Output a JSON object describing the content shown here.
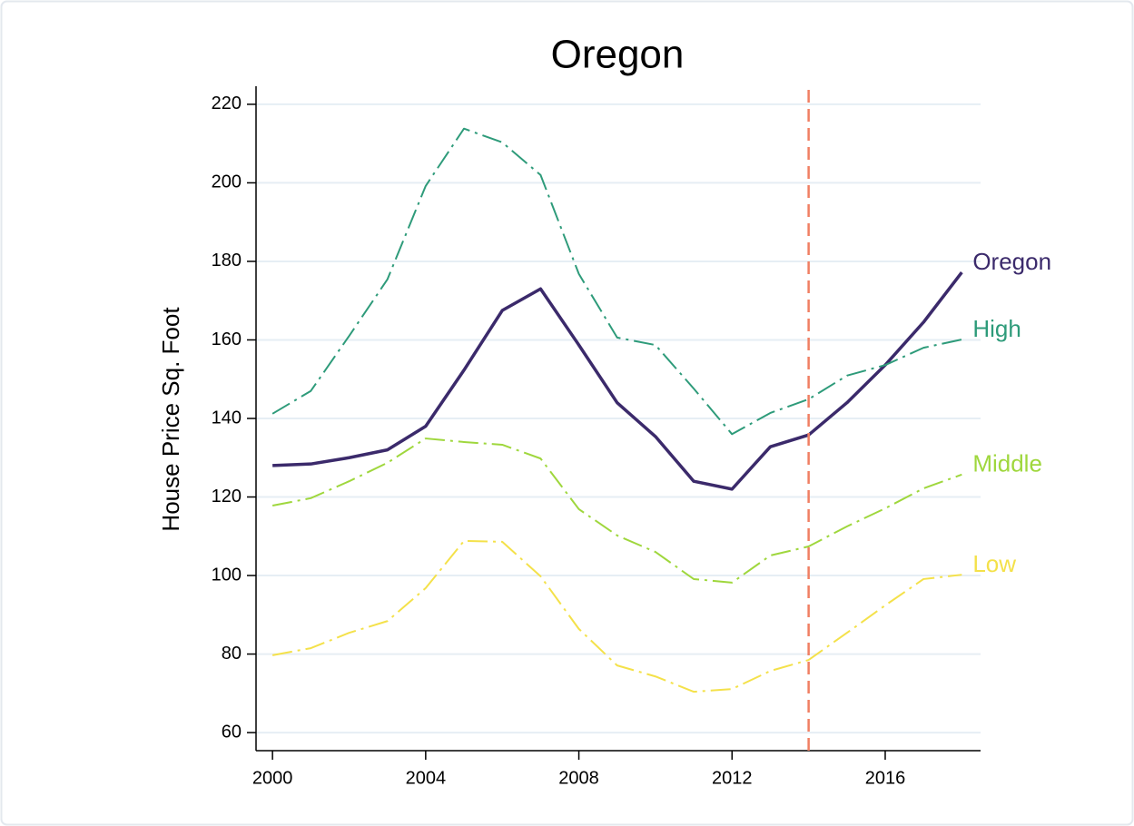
{
  "chart_data": {
    "type": "line",
    "title": "Oregon",
    "ylabel": "House Price Sq. Foot",
    "x": [
      2000,
      2001,
      2002,
      2003,
      2004,
      2005,
      2006,
      2007,
      2008,
      2009,
      2010,
      2011,
      2012,
      2013,
      2014,
      2015,
      2016,
      2017,
      2018
    ],
    "series": [
      {
        "name": "Oregon",
        "color": "#3b2a6b",
        "style": "solid",
        "values": [
          128,
          128.4,
          130,
          132,
          138,
          152.3,
          167.5,
          173,
          158.7,
          144,
          135.4,
          124,
          122,
          132.8,
          135.8,
          144,
          153.6,
          164.5,
          177.2
        ]
      },
      {
        "name": "High",
        "color": "#2e9b7a",
        "style": "dashdot",
        "values": [
          141.2,
          147,
          161,
          175.4,
          199.2,
          213.8,
          210.3,
          202,
          176.8,
          160.6,
          158.7,
          147.6,
          136,
          141.4,
          144.9,
          150.9,
          153.6,
          158,
          160.1
        ]
      },
      {
        "name": "Middle",
        "color": "#9fd73d",
        "style": "dashdot",
        "values": [
          117.8,
          119.7,
          124,
          128.7,
          134.9,
          134,
          133.3,
          129.8,
          116.9,
          110.2,
          106,
          99.1,
          98.2,
          105.1,
          107.4,
          112.5,
          117.1,
          122.2,
          125.7
        ]
      },
      {
        "name": "Low",
        "color": "#f4e14a",
        "style": "dashdot",
        "values": [
          79.7,
          81.5,
          85.4,
          88.4,
          96.8,
          108.8,
          108.6,
          99.8,
          86.4,
          77.1,
          74.3,
          70.4,
          71.1,
          75.7,
          78.5,
          85.4,
          92.4,
          99.1,
          100.2
        ]
      }
    ],
    "xlim": [
      1999.57,
      2018.49
    ],
    "xticks": [
      2000,
      2004,
      2008,
      2012,
      2016
    ],
    "ylim": [
      55.4,
      224.6
    ],
    "yticks": [
      60,
      80,
      100,
      120,
      140,
      160,
      180,
      200,
      220
    ],
    "grid": true,
    "vline": {
      "x": 2014,
      "color": "#f07f63"
    }
  }
}
